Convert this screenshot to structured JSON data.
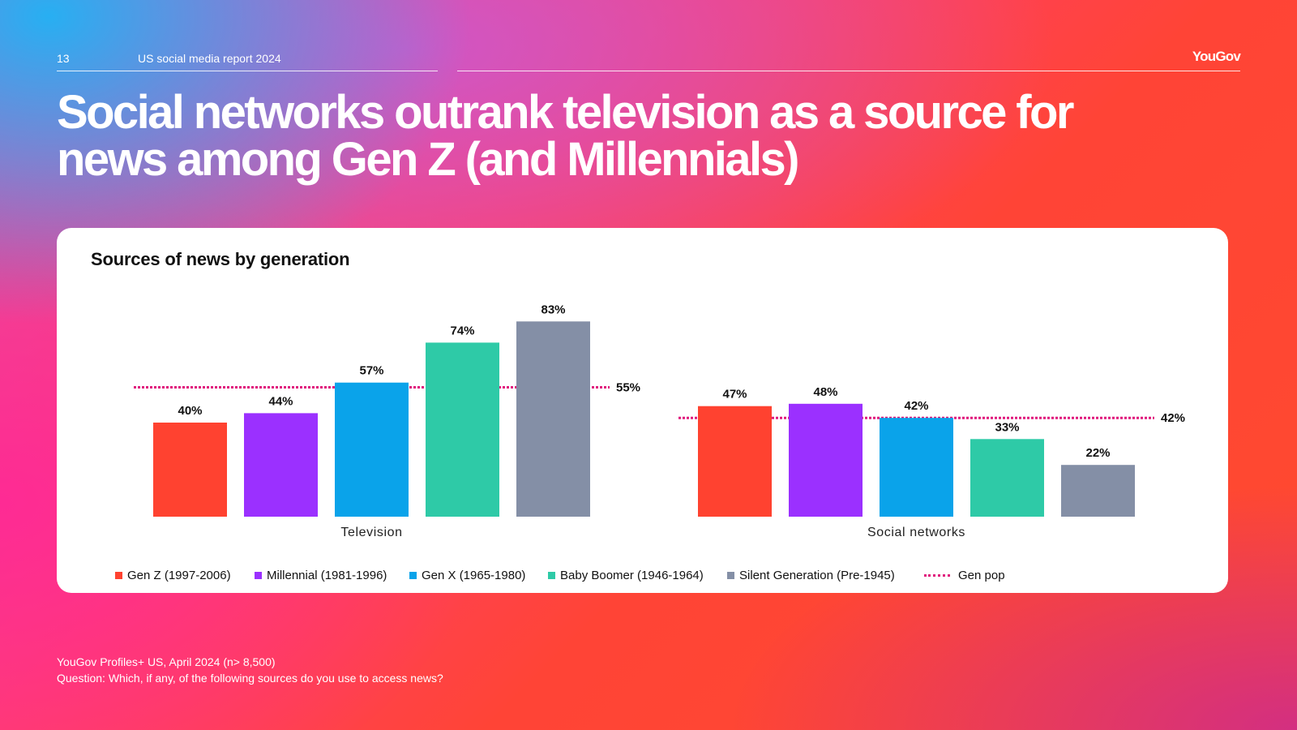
{
  "header": {
    "page_number": "13",
    "report_title": "US social media report 2024",
    "brand": "YouGov"
  },
  "headline": {
    "line1": "Social networks outrank television as a source for",
    "line2": "news among Gen Z (and Millennials)"
  },
  "colors": {
    "gen_z": "#ff4230",
    "millennial": "#9b30ff",
    "gen_x": "#0aa3ea",
    "baby_boomer": "#2ecaa7",
    "silent": "#848fa6",
    "gen_pop": "#e0197d"
  },
  "chart_data": {
    "type": "bar",
    "title": "Sources of news by generation",
    "categories": [
      "Television",
      "Social networks"
    ],
    "series": [
      {
        "name": "Gen Z (1997-2006)",
        "values": [
          40,
          47
        ],
        "color": "#ff4230"
      },
      {
        "name": "Millennial (1981-1996)",
        "values": [
          44,
          48
        ],
        "color": "#9b30ff"
      },
      {
        "name": "Gen X (1965-1980)",
        "values": [
          57,
          42
        ],
        "color": "#0aa3ea"
      },
      {
        "name": "Baby Boomer (1946-1964)",
        "values": [
          74,
          33
        ],
        "color": "#2ecaa7"
      },
      {
        "name": "Silent Generation (Pre-1945)",
        "values": [
          83,
          22
        ],
        "color": "#848fa6"
      }
    ],
    "reference": {
      "name": "Gen pop",
      "values": [
        55,
        42
      ],
      "color": "#e0197d"
    },
    "value_suffix": "%",
    "ylim": [
      0,
      100
    ],
    "legend": {
      "items": [
        "Gen Z (1997-2006)",
        "Millennial (1981-1996)",
        "Gen X (1965-1980)",
        "Baby Boomer (1946-1964)",
        "Silent Generation (Pre-1945)",
        "Gen pop"
      ]
    }
  },
  "source_note": {
    "line1": "YouGov Profiles+ US, April 2024 (n> 8,500)",
    "line2": "Question: Which, if any, of the following sources do you use to access news?"
  }
}
